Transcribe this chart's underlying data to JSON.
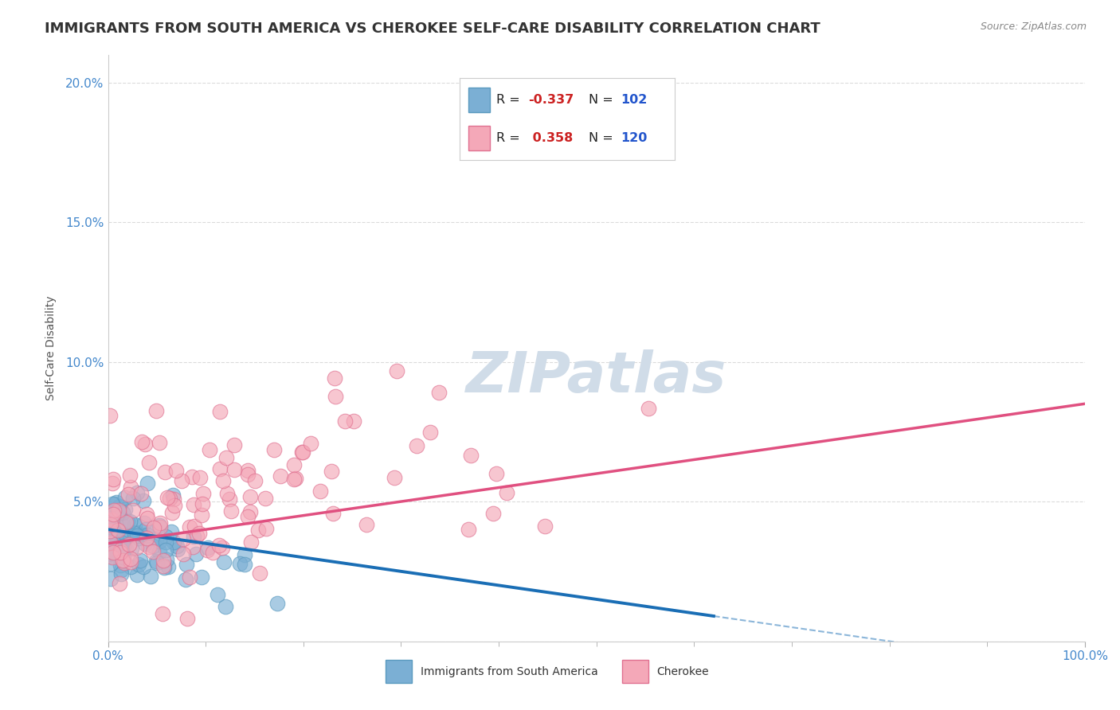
{
  "title": "IMMIGRANTS FROM SOUTH AMERICA VS CHEROKEE SELF-CARE DISABILITY CORRELATION CHART",
  "source": "Source: ZipAtlas.com",
  "ylabel": "Self-Care Disability",
  "watermark": "ZIPatlas",
  "blue_color": "#7bafd4",
  "blue_edge": "#5a9abf",
  "pink_color": "#f4a8b8",
  "pink_edge": "#e07090",
  "blue_R": -0.337,
  "blue_N": 102,
  "pink_R": 0.358,
  "pink_N": 120,
  "blue_trend_y_start": 4.0,
  "blue_trend_y_end": -1.0,
  "blue_trend_solid_end_x": 62.0,
  "pink_trend_y_start": 3.5,
  "pink_trend_y_end": 8.5,
  "pink_trend_color": "#e05080",
  "blue_trend_color": "#1a6eb5",
  "xlim": [
    0,
    100
  ],
  "ylim": [
    0,
    21
  ],
  "yticks": [
    0,
    5,
    10,
    15,
    20
  ],
  "ytick_labels": [
    "",
    "5.0%",
    "10.0%",
    "15.0%",
    "20.0%"
  ],
  "xtick_labels": [
    "0.0%",
    "100.0%"
  ],
  "background_color": "#ffffff",
  "grid_color": "#cccccc",
  "title_color": "#333333",
  "title_fontsize": 13,
  "axis_label_color": "#4488cc",
  "watermark_color": "#d0dce8",
  "watermark_fontsize": 52,
  "legend_R_color": "#cc2222",
  "legend_N_color": "#2255cc"
}
